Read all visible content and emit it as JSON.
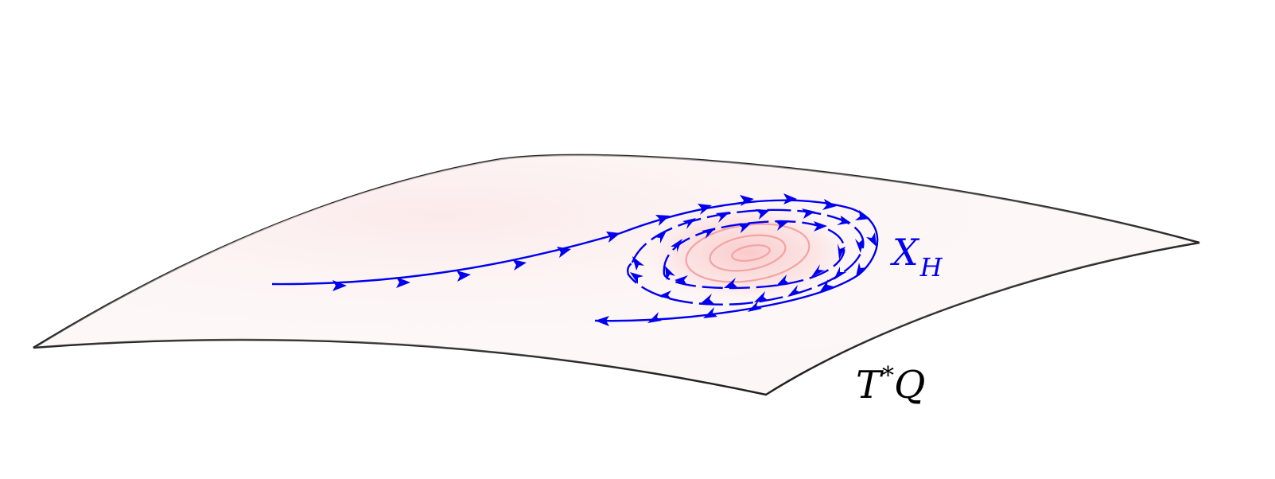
{
  "figure": {
    "vector_field_label": {
      "main": "X",
      "sub": "H"
    },
    "manifold_label": {
      "main": "T",
      "sup": "*",
      "base": "Q"
    },
    "colors": {
      "surface_outline": "#222222",
      "surface_fill": "#fdf6f6",
      "flow": "#0000ee",
      "level_sets": "#f4a3a3",
      "level_glow": "#fbd4d4"
    },
    "icons": [
      "arrowhead-icon"
    ]
  }
}
